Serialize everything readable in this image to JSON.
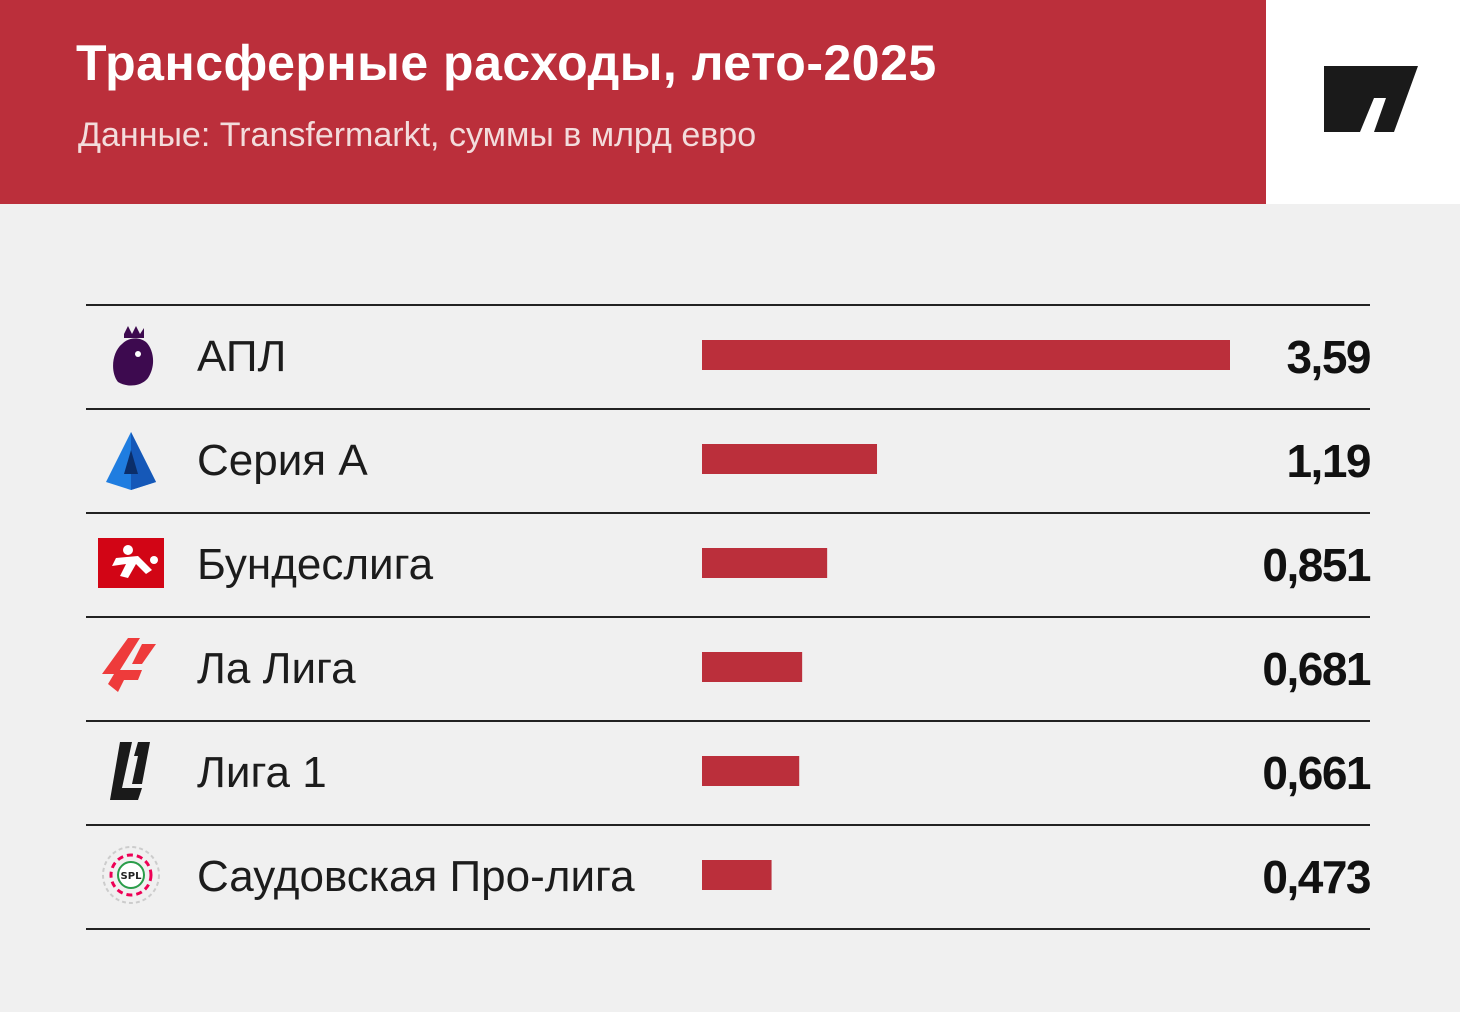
{
  "header": {
    "title": "Трансферные расходы, лето-2025",
    "subtitle": "Данные: Transfermarkt, суммы в млрд евро"
  },
  "colors": {
    "header_bg": "#bb2f3b",
    "bar": "#bb2f3b",
    "background": "#f0f0f0",
    "rule": "#222222"
  },
  "chart_data": {
    "type": "bar",
    "orientation": "horizontal",
    "title": "Трансферные расходы, лето-2025",
    "subtitle": "Данные: Transfermarkt, суммы в млрд евро",
    "categories": [
      "АПЛ",
      "Серия А",
      "Бундеслига",
      "Ла Лига",
      "Лига 1",
      "Саудовская Про-лига"
    ],
    "values": [
      3.59,
      1.19,
      0.851,
      0.681,
      0.661,
      0.473
    ],
    "value_labels": [
      "3,59",
      "1,19",
      "0,851",
      "0,681",
      "0,661",
      "0,473"
    ],
    "icons": [
      "premier-league-lion-icon",
      "serie-a-icon",
      "bundesliga-icon",
      "laliga-icon",
      "ligue1-icon",
      "saudi-pro-league-icon"
    ],
    "xlim": [
      0,
      3.59
    ],
    "grid": false
  }
}
